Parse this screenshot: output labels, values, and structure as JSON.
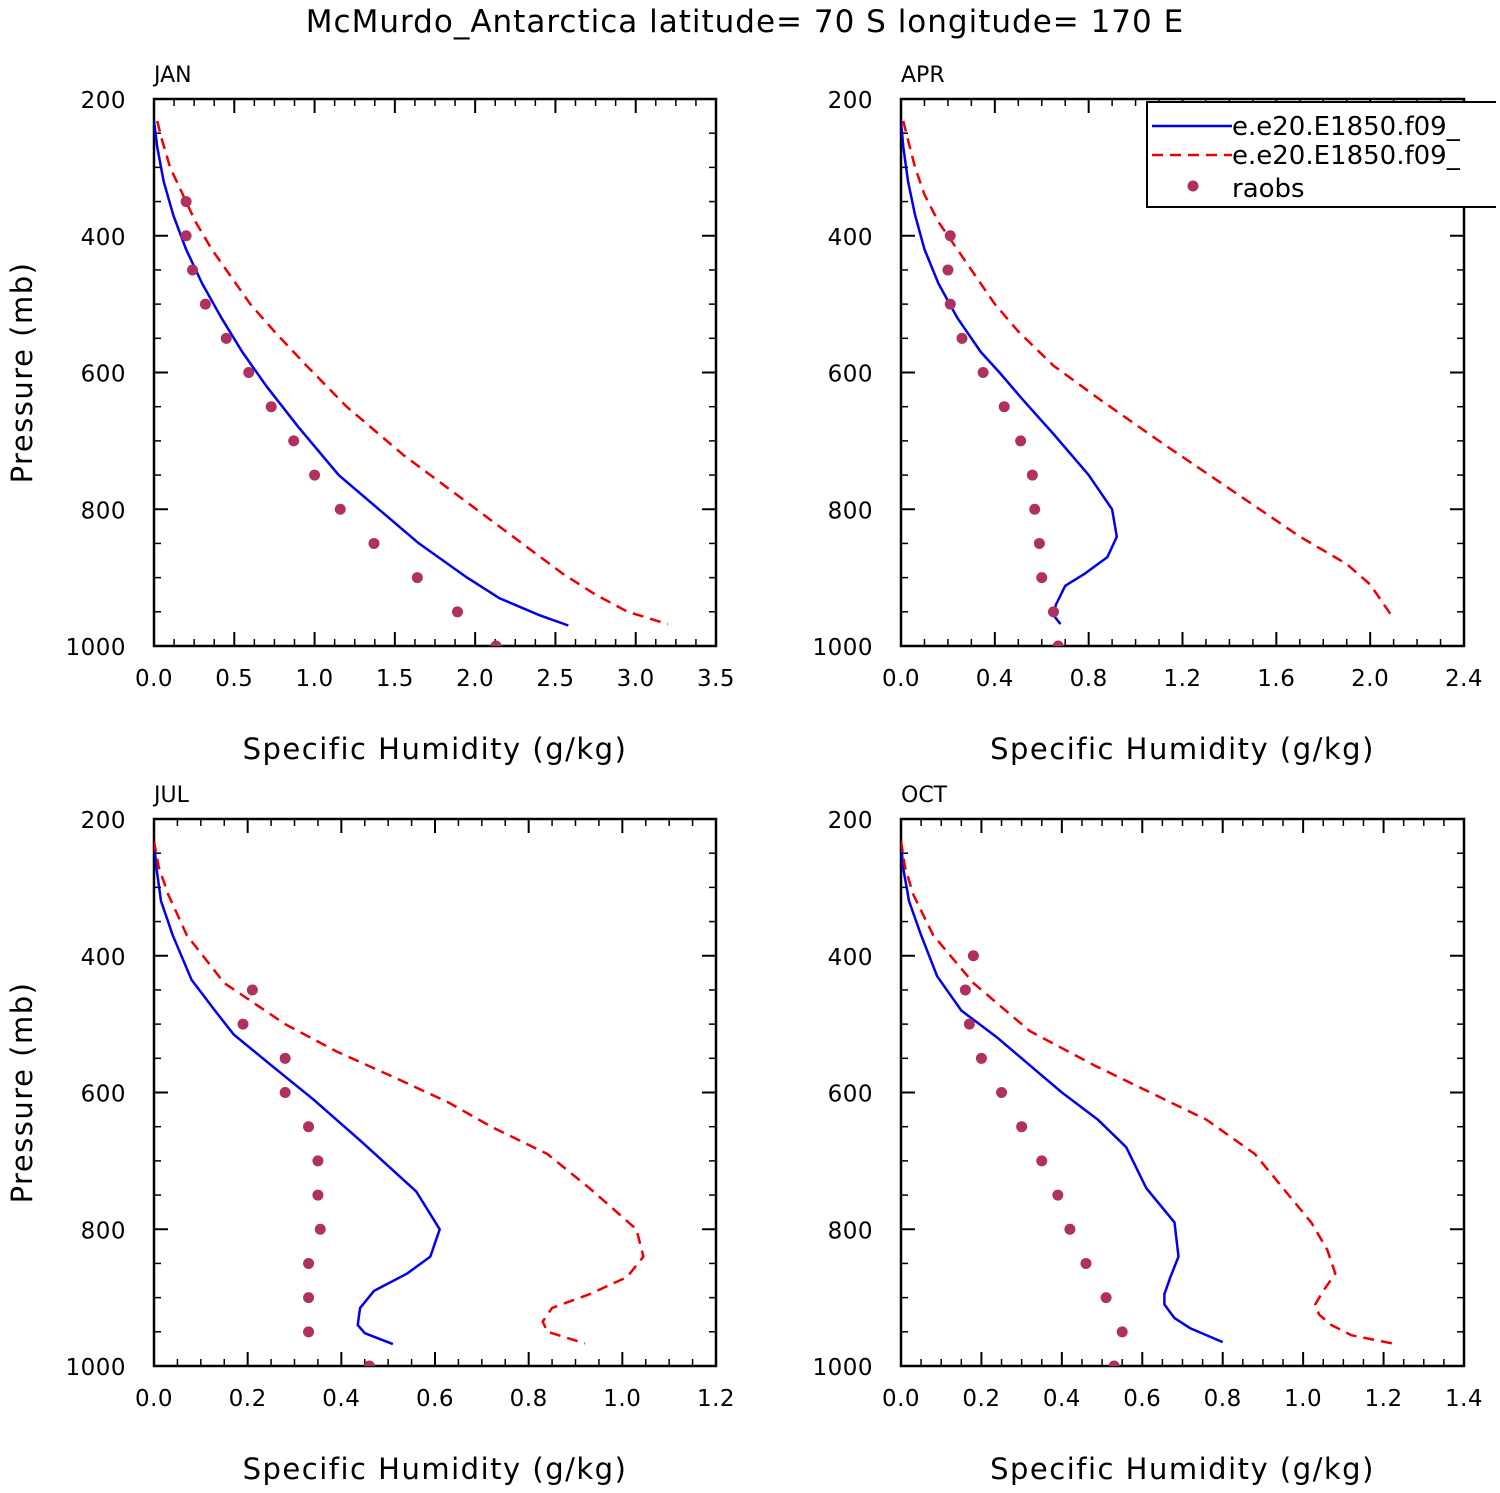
{
  "title": "McMurdo_Antarctica  latitude= 70 S longitude= 170 E",
  "legend": {
    "entries": [
      {
        "label": "e.e20.E1850.f09_",
        "color": "#0000ee",
        "style": "solid"
      },
      {
        "label": "e.e20.E1850.f09_",
        "color": "#ee0000",
        "style": "dashed"
      },
      {
        "label": "raobs",
        "color": "#b03060",
        "style": "dots"
      }
    ]
  },
  "colors": {
    "model1": "#0000ee",
    "model2": "#ee0000",
    "obs": "#b03060"
  },
  "chart_data": [
    {
      "type": "line",
      "panel": "JAN",
      "xlabel": "Specific Humidity (g/kg)",
      "ylabel": "Pressure (mb)",
      "xlim": [
        0,
        3.5
      ],
      "ylim": [
        1000,
        200
      ],
      "xticks": [
        "0.0",
        "0.5",
        "1.0",
        "1.5",
        "2.0",
        "2.5",
        "3.0",
        "3.5"
      ],
      "xtick_values": [
        0,
        0.5,
        1.0,
        1.5,
        2.0,
        2.5,
        3.0,
        3.5
      ],
      "yticks": [
        "200",
        "400",
        "600",
        "800",
        "1000"
      ],
      "ytick_values": [
        200,
        400,
        600,
        800,
        1000
      ],
      "series": [
        {
          "name": "e.e20.E1850.f09_",
          "style": "solid",
          "q": [
            0.0,
            0.02,
            0.06,
            0.12,
            0.2,
            0.3,
            0.42,
            0.55,
            0.7,
            0.9,
            1.15,
            1.45,
            1.65,
            1.95,
            2.15,
            2.4,
            2.58
          ],
          "p": [
            232,
            270,
            320,
            370,
            420,
            470,
            520,
            570,
            620,
            680,
            750,
            810,
            850,
            900,
            930,
            955,
            970
          ]
        },
        {
          "name": "e.e20.E1850.f09_",
          "style": "dashed",
          "q": [
            0.02,
            0.05,
            0.1,
            0.18,
            0.26,
            0.36,
            0.48,
            0.6,
            0.75,
            0.95,
            1.2,
            1.55,
            1.95,
            2.35,
            2.55,
            2.75,
            2.95,
            3.2
          ],
          "p": [
            232,
            260,
            300,
            340,
            380,
            420,
            460,
            500,
            540,
            590,
            650,
            720,
            790,
            860,
            895,
            925,
            950,
            968
          ]
        },
        {
          "name": "raobs",
          "style": "dots",
          "q": [
            0.2,
            0.2,
            0.24,
            0.32,
            0.45,
            0.59,
            0.73,
            0.87,
            1.0,
            1.16,
            1.37,
            1.64,
            1.89,
            2.13
          ],
          "p": [
            350,
            400,
            450,
            500,
            550,
            600,
            650,
            700,
            750,
            800,
            850,
            900,
            950,
            1000
          ]
        }
      ]
    },
    {
      "type": "line",
      "panel": "APR",
      "xlabel": "Specific Humidity (g/kg)",
      "ylabel": "",
      "xlim": [
        0,
        2.4
      ],
      "ylim": [
        1000,
        200
      ],
      "xticks": [
        "0.0",
        "0.4",
        "0.8",
        "1.2",
        "1.6",
        "2.0",
        "2.4"
      ],
      "xtick_values": [
        0,
        0.4,
        0.8,
        1.2,
        1.6,
        2.0,
        2.4
      ],
      "yticks": [
        "200",
        "400",
        "600",
        "800",
        "1000"
      ],
      "ytick_values": [
        200,
        400,
        600,
        800,
        1000
      ],
      "series": [
        {
          "name": "e.e20.E1850.f09_",
          "style": "solid",
          "q": [
            0.0,
            0.01,
            0.03,
            0.06,
            0.1,
            0.16,
            0.24,
            0.34,
            0.42,
            0.52,
            0.65,
            0.8,
            0.9,
            0.92,
            0.88,
            0.78,
            0.7,
            0.66,
            0.65,
            0.68
          ],
          "p": [
            232,
            270,
            320,
            370,
            420,
            470,
            520,
            570,
            600,
            640,
            690,
            750,
            800,
            840,
            870,
            895,
            912,
            940,
            955,
            968
          ]
        },
        {
          "name": "e.e20.E1850.f09_",
          "style": "dashed",
          "q": [
            0.01,
            0.03,
            0.06,
            0.1,
            0.16,
            0.24,
            0.32,
            0.4,
            0.5,
            0.65,
            0.85,
            1.1,
            1.4,
            1.7,
            1.9,
            2.0,
            2.05,
            2.1
          ],
          "p": [
            232,
            260,
            300,
            340,
            380,
            420,
            460,
            500,
            540,
            590,
            640,
            700,
            770,
            840,
            880,
            910,
            935,
            960
          ]
        },
        {
          "name": "raobs",
          "style": "dots",
          "q": [
            0.21,
            0.2,
            0.21,
            0.26,
            0.35,
            0.44,
            0.51,
            0.56,
            0.57,
            0.59,
            0.6,
            0.65,
            0.67
          ],
          "p": [
            400,
            450,
            500,
            550,
            600,
            650,
            700,
            750,
            800,
            850,
            900,
            950,
            1000
          ]
        }
      ]
    },
    {
      "type": "line",
      "panel": "JUL",
      "xlabel": "Specific Humidity (g/kg)",
      "ylabel": "Pressure (mb)",
      "xlim": [
        0,
        1.2
      ],
      "ylim": [
        1000,
        200
      ],
      "xticks": [
        "0.0",
        "0.2",
        "0.4",
        "0.6",
        "0.8",
        "1.0",
        "1.2"
      ],
      "xtick_values": [
        0,
        0.2,
        0.4,
        0.6,
        0.8,
        1.0,
        1.2
      ],
      "yticks": [
        "200",
        "400",
        "600",
        "800",
        "1000"
      ],
      "ytick_values": [
        200,
        400,
        600,
        800,
        1000
      ],
      "series": [
        {
          "name": "e.e20.E1850.f09_",
          "style": "solid",
          "q": [
            0.0,
            0.005,
            0.015,
            0.04,
            0.08,
            0.13,
            0.17,
            0.25,
            0.34,
            0.44,
            0.56,
            0.61,
            0.59,
            0.54,
            0.47,
            0.44,
            0.435,
            0.45,
            0.51
          ],
          "p": [
            232,
            270,
            320,
            370,
            435,
            480,
            515,
            560,
            610,
            670,
            745,
            800,
            840,
            865,
            890,
            915,
            940,
            952,
            968
          ]
        },
        {
          "name": "e.e20.E1850.f09_",
          "style": "dashed",
          "q": [
            0.0,
            0.01,
            0.03,
            0.07,
            0.15,
            0.28,
            0.39,
            0.52,
            0.63,
            0.72,
            0.84,
            0.93,
            1.03,
            1.045,
            1.01,
            0.93,
            0.85,
            0.83,
            0.84,
            0.92
          ],
          "p": [
            232,
            270,
            310,
            370,
            440,
            500,
            540,
            580,
            615,
            650,
            690,
            740,
            800,
            840,
            870,
            895,
            915,
            935,
            950,
            967
          ]
        },
        {
          "name": "raobs",
          "style": "dots",
          "q": [
            0.21,
            0.19,
            0.28,
            0.28,
            0.33,
            0.35,
            0.35,
            0.355,
            0.33,
            0.33,
            0.33,
            0.46
          ],
          "p": [
            450,
            500,
            550,
            600,
            650,
            700,
            750,
            800,
            850,
            900,
            950,
            1000
          ]
        }
      ]
    },
    {
      "type": "line",
      "panel": "OCT",
      "xlabel": "Specific Humidity (g/kg)",
      "ylabel": "",
      "xlim": [
        0,
        1.4
      ],
      "ylim": [
        1000,
        200
      ],
      "xticks": [
        "0.0",
        "0.2",
        "0.4",
        "0.6",
        "0.8",
        "1.0",
        "1.2",
        "1.4"
      ],
      "xtick_values": [
        0,
        0.2,
        0.4,
        0.6,
        0.8,
        1.0,
        1.2,
        1.4
      ],
      "yticks": [
        "200",
        "400",
        "600",
        "800",
        "1000"
      ],
      "ytick_values": [
        200,
        400,
        600,
        800,
        1000
      ],
      "series": [
        {
          "name": "e.e20.E1850.f09_",
          "style": "solid",
          "q": [
            0.0,
            0.005,
            0.02,
            0.05,
            0.09,
            0.15,
            0.24,
            0.32,
            0.4,
            0.49,
            0.56,
            0.61,
            0.68,
            0.69,
            0.67,
            0.655,
            0.655,
            0.68,
            0.72,
            0.8
          ],
          "p": [
            232,
            270,
            320,
            370,
            430,
            480,
            520,
            560,
            600,
            640,
            680,
            740,
            790,
            840,
            870,
            895,
            910,
            930,
            945,
            965
          ]
        },
        {
          "name": "e.e20.E1850.f09_",
          "style": "dashed",
          "q": [
            0.0,
            0.01,
            0.03,
            0.08,
            0.18,
            0.32,
            0.48,
            0.62,
            0.76,
            0.88,
            0.95,
            1.02,
            1.06,
            1.08,
            1.05,
            1.03,
            1.04,
            1.07,
            1.12,
            1.23
          ],
          "p": [
            232,
            270,
            310,
            370,
            440,
            510,
            560,
            600,
            640,
            690,
            740,
            790,
            830,
            865,
            890,
            910,
            925,
            940,
            955,
            968
          ]
        },
        {
          "name": "raobs",
          "style": "dots",
          "q": [
            0.18,
            0.16,
            0.17,
            0.2,
            0.25,
            0.3,
            0.35,
            0.39,
            0.42,
            0.46,
            0.51,
            0.55,
            0.53
          ],
          "p": [
            400,
            450,
            500,
            550,
            600,
            650,
            700,
            750,
            800,
            850,
            900,
            950,
            1000
          ]
        }
      ]
    }
  ]
}
